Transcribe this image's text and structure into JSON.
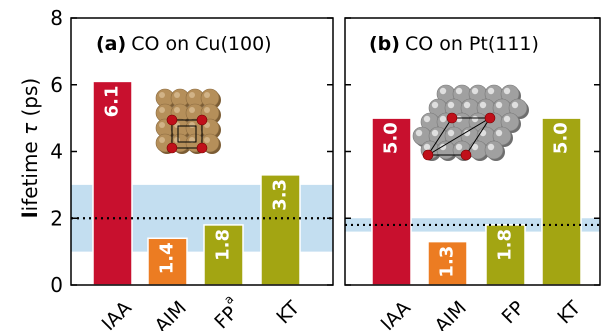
{
  "colors": {
    "red": "#c8102e",
    "orange": "#ec7c22",
    "olive": "#a3a512",
    "band": "#c3def0",
    "dotted": "#000000",
    "atom_cu": "#b58f5a",
    "atom_pt": "#a0a0a0",
    "atom_co": "#c0101a"
  },
  "chart_data": [
    {
      "type": "bar",
      "panel_label": "(a)",
      "title": "CO on Cu(100)",
      "ylabel": "lifetime τ (ps)",
      "ylim": [
        0,
        8
      ],
      "yticks": [
        "0",
        "2",
        "4",
        "6",
        "8"
      ],
      "categories": [
        "IAA",
        "AIM",
        "FP",
        "KT"
      ],
      "category_superscripts": [
        "",
        "",
        "a",
        ""
      ],
      "values": [
        6.1,
        1.4,
        1.8,
        3.3
      ],
      "value_labels": [
        "6.1",
        "1.4",
        "1.8",
        "3.3"
      ],
      "bar_colors": [
        "red",
        "orange",
        "olive",
        "olive"
      ],
      "experiment_line": 2.0,
      "experiment_band": [
        1.0,
        3.0
      ],
      "inset": "Cu(100) slab with CO"
    },
    {
      "type": "bar",
      "panel_label": "(b)",
      "title": "CO on Pt(111)",
      "ylabel": "",
      "ylim": [
        0,
        8
      ],
      "yticks": [
        "0",
        "2",
        "4",
        "6",
        "8"
      ],
      "categories": [
        "IAA",
        "AIM",
        "FP",
        "KT"
      ],
      "category_superscripts": [
        "",
        "",
        "",
        ""
      ],
      "values": [
        5.0,
        1.3,
        1.8,
        5.0
      ],
      "value_labels": [
        "5.0",
        "1.3",
        "1.8",
        "5.0"
      ],
      "bar_colors": [
        "red",
        "orange",
        "olive",
        "olive"
      ],
      "experiment_line": 1.8,
      "experiment_band": [
        1.6,
        2.0
      ],
      "inset": "Pt(111) slab with CO"
    }
  ]
}
